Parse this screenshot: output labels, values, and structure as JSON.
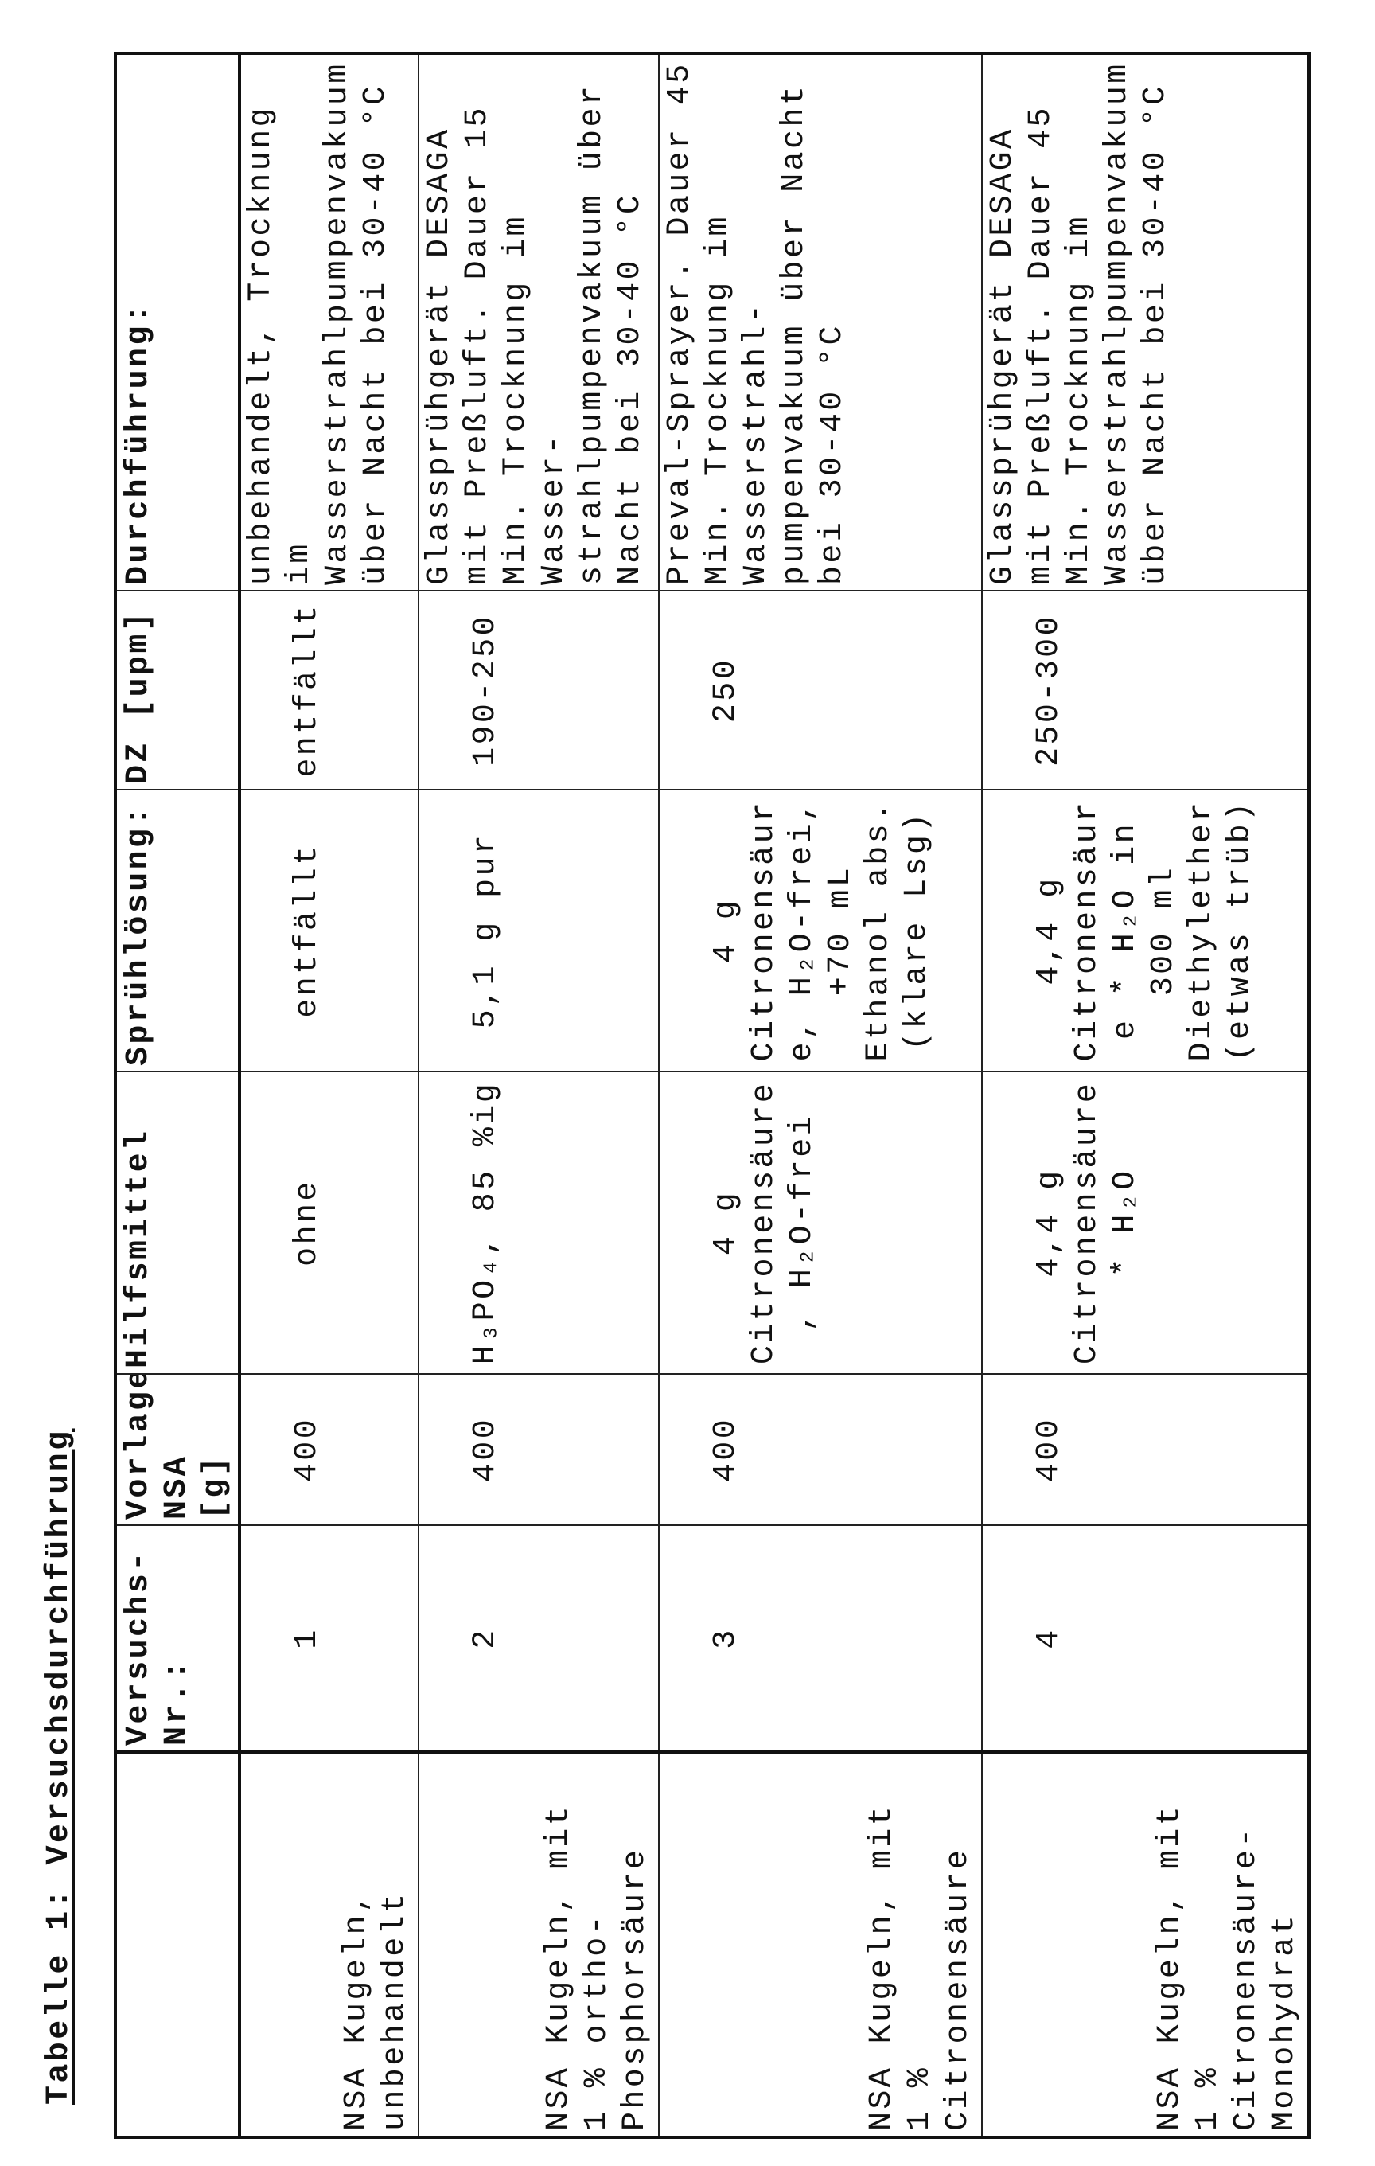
{
  "title": "Tabelle 1: Versuchsdurchführung",
  "table": {
    "headers": [
      "",
      "Versuchs-\nNr.:",
      "Vorlage\nNSA [g]",
      "Hilfsmittel",
      "Sprühlösung:",
      "DZ [upm]",
      "Durchführung:"
    ],
    "rows": [
      [
        "NSA Kugeln,\nunbehandelt",
        "1",
        "400",
        "ohne",
        "entfällt",
        "entfällt",
        "unbehandelt, Trocknung\nim\nWasserstrahlpumpenvakuum\nüber Nacht bei 30-40 °C"
      ],
      [
        "NSA Kugeln, mit\n1 % ortho-\nPhosphorsäure",
        "2",
        "400",
        "H₃PO₄, 85 %ig",
        "5,1 g pur",
        "190-250",
        "Glassprühgerät DESAGA\nmit Preßluft. Dauer 15\nMin. Trocknung im\nWasser-\nstrahlpumpenvakuum über\nNacht bei 30-40 °C"
      ],
      [
        "NSA Kugeln, mit\n1 %\nCitronensäure",
        "3",
        "400",
        "4 g\nCitronensäure\n, H₂O-frei",
        "4 g\nCitronensäur\ne, H₂O-frei,\n+70 mL\nEthanol abs.\n(klare Lsg)",
        "250",
        "Preval-Sprayer. Dauer 45\nMin. Trocknung im\nWasserstrahl-\npumpenvakuum über Nacht\nbei 30-40 °C"
      ],
      [
        "NSA Kugeln, mit\n1 %\nCitronensäure-\nMonohydrat",
        "4",
        "400",
        "4,4 g\nCitronensäure\n* H₂O",
        "4,4 g\nCitronensäur\ne * H₂O in\n300 ml\nDiethylether\n(etwas trüb)",
        "250-300",
        "Glassprühgerät DESAGA\nmit Preßluft. Dauer 45\nMin. Trocknung im\nWasserstrahlpumpenvakuum\nüber Nacht bei 30-40 °C"
      ]
    ]
  }
}
